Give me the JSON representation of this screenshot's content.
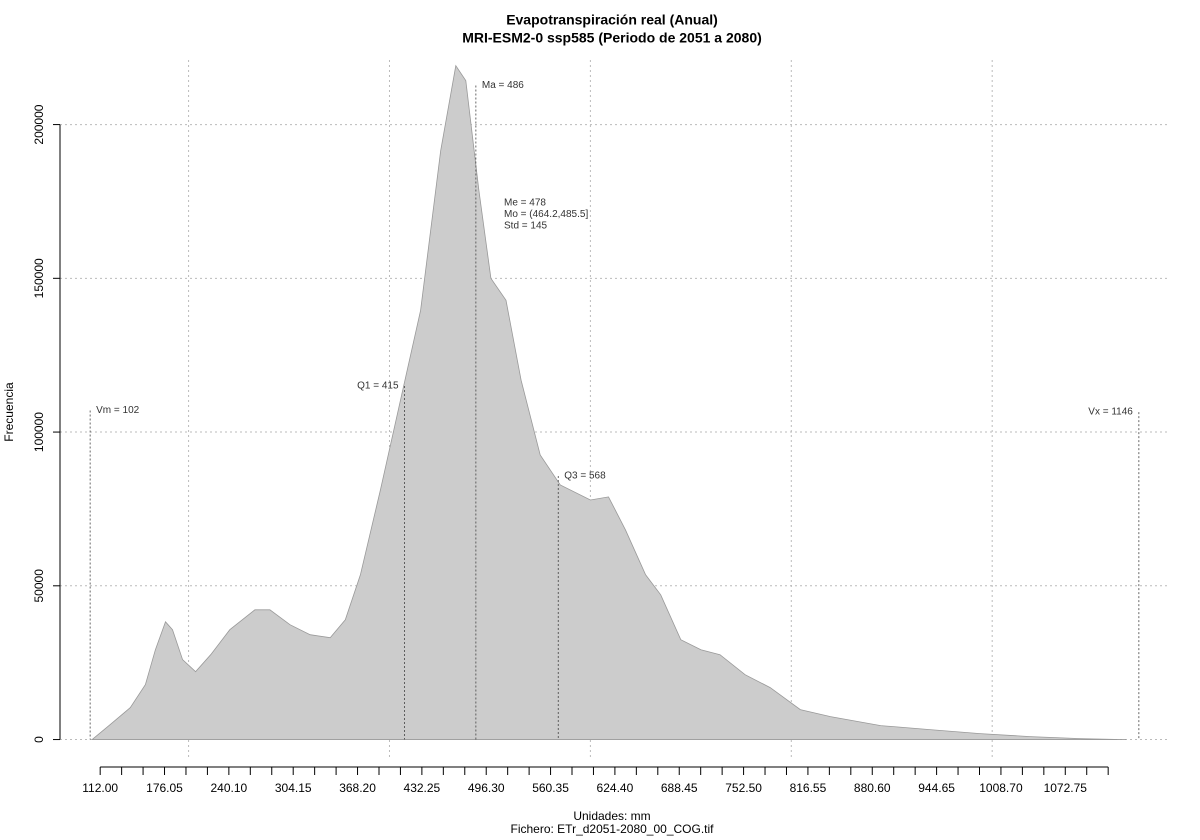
{
  "chart_data": {
    "type": "density",
    "title": "Evapotranspiración real (Anual)",
    "subtitle": "MRI-ESM2-0 ssp585 (Periodo de 2051 a 2080)",
    "ylabel": "Frecuencia",
    "xlabel": "Unidades: mm",
    "caption": "Fichero: ETr_d2051-2080_00_COG.tif",
    "color": "#cccccc",
    "grid": true,
    "x": [
      104,
      122,
      142,
      157,
      167,
      177,
      184,
      194,
      207,
      222,
      241,
      266,
      281,
      301,
      321,
      341,
      356,
      371,
      391,
      411,
      431,
      451,
      466,
      476,
      489,
      501,
      516,
      531,
      550,
      570,
      600,
      618,
      635,
      655,
      670,
      690,
      710,
      729,
      754,
      779,
      809,
      839,
      889,
      938,
      988,
      1038,
      1088,
      1133
    ],
    "values": [
      0,
      4870,
      10390,
      17860,
      29220,
      38310,
      35710,
      25970,
      22080,
      27600,
      35710,
      42210,
      42210,
      37340,
      34090,
      33120,
      38960,
      53570,
      81170,
      110390,
      139610,
      191560,
      219160,
      214290,
      178570,
      150000,
      142860,
      116880,
      92530,
      82790,
      77920,
      78900,
      68180,
      53570,
      47080,
      32470,
      29220,
      27600,
      21100,
      16880,
      9740,
      7470,
      4550,
      3250,
      1950,
      970,
      320,
      0
    ],
    "xlim": [
      72,
      1177
    ],
    "ylim": [
      -6000,
      221000
    ],
    "yticks": [
      0,
      50000,
      100000,
      150000,
      200000
    ],
    "xticks": [
      {
        "value": 112,
        "label": "112.00"
      },
      {
        "value": 176.05,
        "label": "176.05"
      },
      {
        "value": 240.1,
        "label": "240.10"
      },
      {
        "value": 304.15,
        "label": "304.15"
      },
      {
        "value": 368.2,
        "label": "368.20"
      },
      {
        "value": 432.25,
        "label": "432.25"
      },
      {
        "value": 496.3,
        "label": "496.30"
      },
      {
        "value": 560.35,
        "label": "560.35"
      },
      {
        "value": 624.4,
        "label": "624.40"
      },
      {
        "value": 688.45,
        "label": "688.45"
      },
      {
        "value": 752.5,
        "label": "752.50"
      },
      {
        "value": 816.55,
        "label": "816.55"
      },
      {
        "value": 880.6,
        "label": "880.60"
      },
      {
        "value": 944.65,
        "label": "944.65"
      },
      {
        "value": 1008.7,
        "label": "1008.70"
      },
      {
        "value": 1072.75,
        "label": "1072.75"
      }
    ],
    "xminor_ticks": [
      133.35,
      154.7,
      197.4,
      218.75,
      261.45,
      282.8,
      325.5,
      346.85,
      389.55,
      410.9,
      453.6,
      474.95,
      517.65,
      539,
      581.7,
      603.05,
      645.75,
      667.1,
      709.8,
      731.15,
      773.85,
      795.2,
      837.9,
      859.25,
      901.95,
      923.3,
      966,
      987.35,
      1030.05,
      1051.4,
      1094.1,
      1115.45
    ],
    "xgrid": [
      200,
      400,
      600,
      800,
      1000
    ],
    "stat_lines": [
      {
        "label": "Vm = 102",
        "value": 102,
        "height": 107000,
        "label_side": "right"
      },
      {
        "label": "Q1 = 415",
        "value": 415,
        "height": 115000,
        "label_side": "left"
      },
      {
        "label": "Ma = 486",
        "value": 486,
        "height": 212700,
        "label_side": "right"
      },
      {
        "label": "Q3 = 568",
        "value": 568,
        "height": 85700,
        "label_side": "right"
      },
      {
        "label": "Vx = 1146",
        "value": 1146,
        "height": 106500,
        "label_side": "left"
      }
    ],
    "stats_text": [
      "Me = 478",
      "Mo = (464.2,485.5]",
      "Std = 145"
    ]
  }
}
